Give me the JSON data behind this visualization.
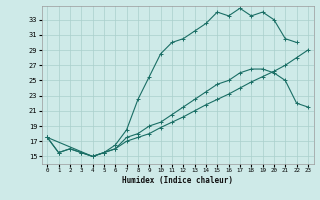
{
  "xlabel": "Humidex (Indice chaleur)",
  "background_color": "#ceeae8",
  "grid_color": "#aacfcc",
  "line_color": "#1a6e65",
  "xlim": [
    -0.5,
    23.5
  ],
  "ylim": [
    14.0,
    34.8
  ],
  "xticks": [
    0,
    1,
    2,
    3,
    4,
    5,
    6,
    7,
    8,
    9,
    10,
    11,
    12,
    13,
    14,
    15,
    16,
    17,
    18,
    19,
    20,
    21,
    22,
    23
  ],
  "yticks": [
    15,
    17,
    19,
    21,
    23,
    25,
    27,
    29,
    31,
    33
  ],
  "series1_x": [
    0,
    1,
    2,
    3,
    4,
    5,
    6,
    7,
    8,
    9,
    10,
    11,
    12,
    13,
    14,
    15,
    16,
    17,
    18,
    19,
    20,
    21,
    22
  ],
  "series1_y": [
    17.5,
    15.5,
    16.0,
    15.5,
    15.0,
    15.5,
    16.5,
    18.5,
    22.5,
    25.5,
    28.5,
    30.0,
    30.5,
    31.5,
    32.5,
    34.0,
    33.5,
    34.5,
    33.5,
    34.0,
    33.0,
    30.5,
    30.0
  ],
  "series2_x": [
    0,
    1,
    2,
    3,
    4,
    5,
    6,
    7,
    8,
    9,
    10,
    11,
    12,
    13,
    14,
    15,
    16,
    17,
    18,
    19,
    20,
    21,
    22,
    23
  ],
  "series2_y": [
    17.5,
    15.5,
    16.0,
    15.5,
    15.0,
    15.5,
    16.0,
    17.5,
    18.0,
    19.0,
    19.5,
    20.5,
    21.5,
    22.5,
    23.5,
    24.5,
    25.0,
    26.0,
    26.5,
    26.5,
    26.0,
    25.0,
    22.0,
    21.5
  ],
  "series3_x": [
    0,
    4,
    5,
    6,
    7,
    8,
    9,
    10,
    11,
    12,
    13,
    14,
    15,
    16,
    17,
    18,
    19,
    20,
    21,
    22,
    23
  ],
  "series3_y": [
    17.5,
    15.0,
    15.5,
    16.0,
    17.0,
    17.5,
    18.0,
    18.8,
    19.5,
    20.2,
    21.0,
    21.8,
    22.5,
    23.2,
    24.0,
    24.8,
    25.5,
    26.2,
    27.0,
    28.0,
    29.0
  ]
}
